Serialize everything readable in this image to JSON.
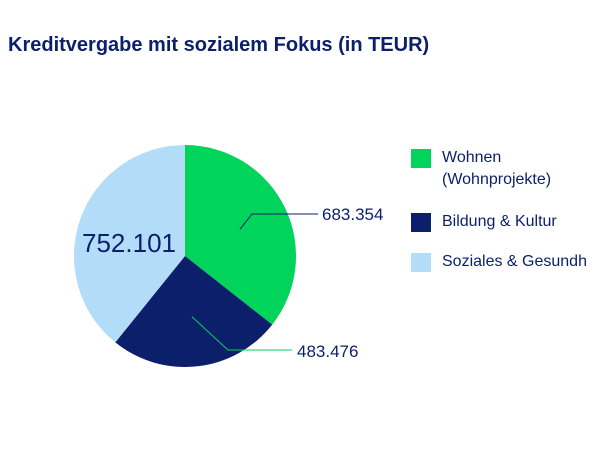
{
  "chart_data": {
    "type": "pie",
    "title": "Kreditvergabe mit sozialem Fokus (in TEUR)",
    "slices": [
      {
        "name": "Wohnen\n(Wohnprojekte)",
        "value": 683354,
        "label": "683.354",
        "color": "#00d45a"
      },
      {
        "name": "Bildung & Kultur",
        "value": 483476,
        "label": "483.476",
        "color": "#0b1f6b"
      },
      {
        "name": "Soziales & Gesundh",
        "value": 752101,
        "label": "752.101",
        "color": "#b3dcf9"
      }
    ],
    "legend_position": "right"
  }
}
